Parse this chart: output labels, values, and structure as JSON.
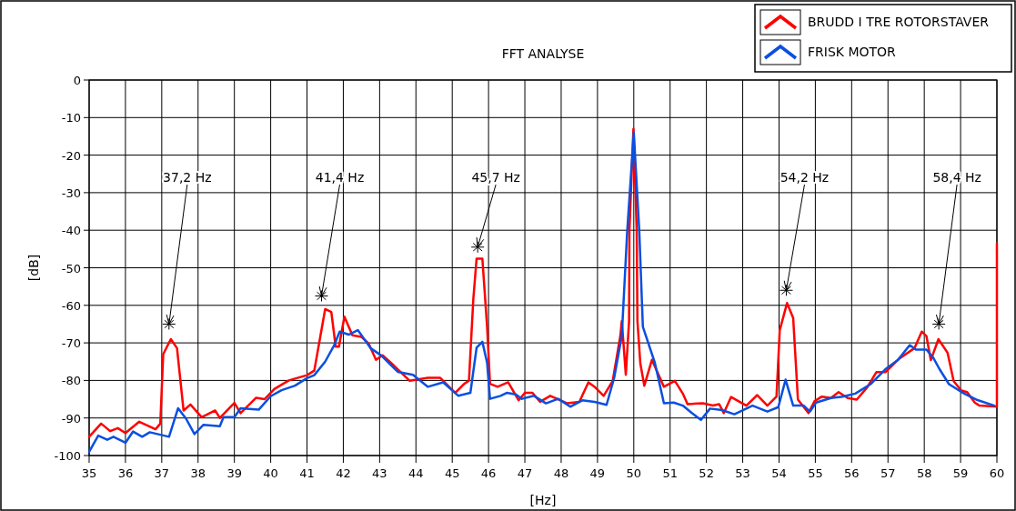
{
  "chart_data": {
    "type": "line",
    "title": "FFT ANALYSE",
    "xlabel": "[Hz]",
    "ylabel": "[dB]",
    "xlim": [
      35,
      60
    ],
    "ylim": [
      -100,
      0
    ],
    "xticks": [
      35,
      36,
      37,
      38,
      39,
      40,
      41,
      42,
      43,
      44,
      45,
      46,
      47,
      48,
      49,
      50,
      51,
      52,
      53,
      54,
      55,
      56,
      57,
      58,
      59,
      60
    ],
    "yticks": [
      -100,
      -90,
      -80,
      -70,
      -60,
      -50,
      -40,
      -30,
      -20,
      -10,
      0
    ],
    "grid": true,
    "legend": "top right",
    "marker": "none",
    "line_style": "solid",
    "annotations": [
      {
        "text": "37,2 Hz",
        "x": 37.2,
        "y": -65
      },
      {
        "text": "41,4 Hz",
        "x": 41.4,
        "y": -57.5
      },
      {
        "text": "45,7 Hz",
        "x": 45.7,
        "y": -44.5
      },
      {
        "text": "54,2 Hz",
        "x": 54.2,
        "y": -56
      },
      {
        "text": "58,4 Hz",
        "x": 58.4,
        "y": -65
      }
    ],
    "series": [
      {
        "name": "BRUDD I TRE ROTORSTAVER",
        "color": "#ff0000",
        "x": [
          35,
          35.33,
          35.58,
          35.79,
          36,
          36.38,
          36.83,
          36.96,
          37.04,
          37.25,
          37.42,
          37.6,
          37.79,
          38.1,
          38.47,
          38.6,
          39,
          39.17,
          39.6,
          39.83,
          40.1,
          40.5,
          41,
          41.2,
          41.5,
          41.67,
          41.79,
          41.88,
          42.03,
          42.25,
          42.5,
          42.7,
          42.9,
          43.08,
          43.4,
          43.83,
          44.33,
          44.67,
          45.08,
          45.33,
          45.46,
          45.58,
          45.67,
          45.83,
          45.96,
          46.04,
          46.25,
          46.54,
          46.83,
          47,
          47.21,
          47.42,
          47.7,
          48.17,
          48.5,
          48.75,
          48.92,
          49.17,
          49.42,
          49.63,
          49.67,
          49.78,
          49.87,
          49.88,
          49.99,
          50.08,
          50.1,
          50.18,
          50.29,
          50.5,
          50.83,
          51.13,
          51.35,
          51.48,
          51.9,
          52.18,
          52.35,
          52.48,
          52.68,
          53.1,
          53.4,
          53.68,
          53.93,
          54.02,
          54.22,
          54.39,
          54.52,
          54.81,
          54.98,
          55.18,
          55.43,
          55.64,
          55.89,
          56.14,
          56.43,
          56.68,
          56.93,
          57.31,
          57.73,
          57.93,
          58.06,
          58.18,
          58.39,
          58.64,
          58.81,
          59.02,
          59.18,
          59.39,
          59.52,
          60,
          60
        ],
        "values": [
          -95,
          -91.5,
          -93.5,
          -92.7,
          -94,
          -91,
          -93,
          -91.5,
          -73,
          -69,
          -71.4,
          -88,
          -86.4,
          -89.8,
          -88,
          -90,
          -86,
          -88.7,
          -84.6,
          -85,
          -82.3,
          -80,
          -78.6,
          -77.4,
          -61,
          -61.8,
          -71,
          -71,
          -63,
          -68,
          -68.4,
          -70.2,
          -74.5,
          -73.3,
          -76.1,
          -80.1,
          -79.3,
          -79.3,
          -83.3,
          -80.9,
          -80.1,
          -58.4,
          -47.6,
          -47.6,
          -65.7,
          -80.9,
          -81.7,
          -80.5,
          -85.3,
          -83.3,
          -83.3,
          -85.7,
          -84.1,
          -86.1,
          -85.7,
          -80.5,
          -81.7,
          -84.1,
          -80.1,
          -68.1,
          -64.2,
          -78.5,
          -64.2,
          -40,
          -13,
          -40,
          -64.2,
          -75.5,
          -81.4,
          -74.5,
          -81.7,
          -80.1,
          -83.5,
          -86.3,
          -86.1,
          -86.7,
          -86.3,
          -88.7,
          -84.4,
          -86.7,
          -83.9,
          -86.7,
          -84.3,
          -66.6,
          -59.4,
          -63.4,
          -85.1,
          -88.7,
          -85.5,
          -84.3,
          -84.7,
          -83.1,
          -84.7,
          -85.1,
          -81.8,
          -77.8,
          -77.8,
          -74.2,
          -71.4,
          -67,
          -68.2,
          -74.6,
          -69,
          -72.6,
          -80.2,
          -82.7,
          -83.1,
          -85.9,
          -86.7,
          -87,
          -43.5
        ]
      },
      {
        "name": "FRISK MOTOR",
        "color": "#0a4fe0",
        "x": [
          35,
          35.25,
          35.5,
          35.67,
          36,
          36.21,
          36.46,
          36.67,
          37.2,
          37.45,
          37.67,
          37.9,
          38.15,
          38.6,
          38.7,
          39,
          39.17,
          39.67,
          40,
          40.3,
          40.67,
          41,
          41.2,
          41.5,
          41.75,
          41.9,
          42.15,
          42.4,
          42.75,
          43.05,
          43.3,
          43.5,
          43.92,
          44.33,
          44.75,
          45.17,
          45.5,
          45.67,
          45.83,
          45.96,
          46.04,
          46.33,
          46.5,
          46.75,
          46.92,
          47.25,
          47.58,
          47.92,
          48.25,
          48.58,
          48.92,
          49.25,
          49.46,
          49.67,
          49.82,
          50,
          50.15,
          50.25,
          50.58,
          50.83,
          51.1,
          51.35,
          51.6,
          51.85,
          52.1,
          52.43,
          52.77,
          53.27,
          53.68,
          53.98,
          54.18,
          54.39,
          54.68,
          54.85,
          55.02,
          55.43,
          55.75,
          56.1,
          56.52,
          56.93,
          57.27,
          57.6,
          57.77,
          58.06,
          58.25,
          58.42,
          58.68,
          59.1,
          59.43,
          59.93
        ],
        "values": [
          -99,
          -94.7,
          -95.8,
          -95,
          -96.6,
          -93.6,
          -95,
          -93.8,
          -95,
          -87.4,
          -90.2,
          -94.3,
          -91.8,
          -92.2,
          -89.8,
          -89.8,
          -87.4,
          -87.8,
          -84.2,
          -82.6,
          -81.4,
          -79.4,
          -78.6,
          -75,
          -70.6,
          -67,
          -67.8,
          -66.6,
          -71.4,
          -73.4,
          -75.8,
          -77.7,
          -78.5,
          -81.7,
          -80.5,
          -84.1,
          -83.3,
          -71.3,
          -69.7,
          -75.3,
          -84.9,
          -84.1,
          -83.3,
          -83.7,
          -84.9,
          -84.1,
          -86.1,
          -84.9,
          -87,
          -85.3,
          -85.7,
          -86.5,
          -79.3,
          -68.1,
          -40,
          -14,
          -40,
          -65.7,
          -75.3,
          -86.1,
          -85.9,
          -86.7,
          -88.7,
          -90.5,
          -87.5,
          -87.9,
          -89,
          -86.7,
          -88.3,
          -87.1,
          -79.8,
          -86.7,
          -86.7,
          -88.3,
          -85.9,
          -84.7,
          -84.3,
          -83.5,
          -81,
          -77,
          -74.6,
          -70.6,
          -71.8,
          -71.8,
          -74,
          -77,
          -81,
          -83.5,
          -85.1,
          -86.7
        ]
      }
    ]
  }
}
